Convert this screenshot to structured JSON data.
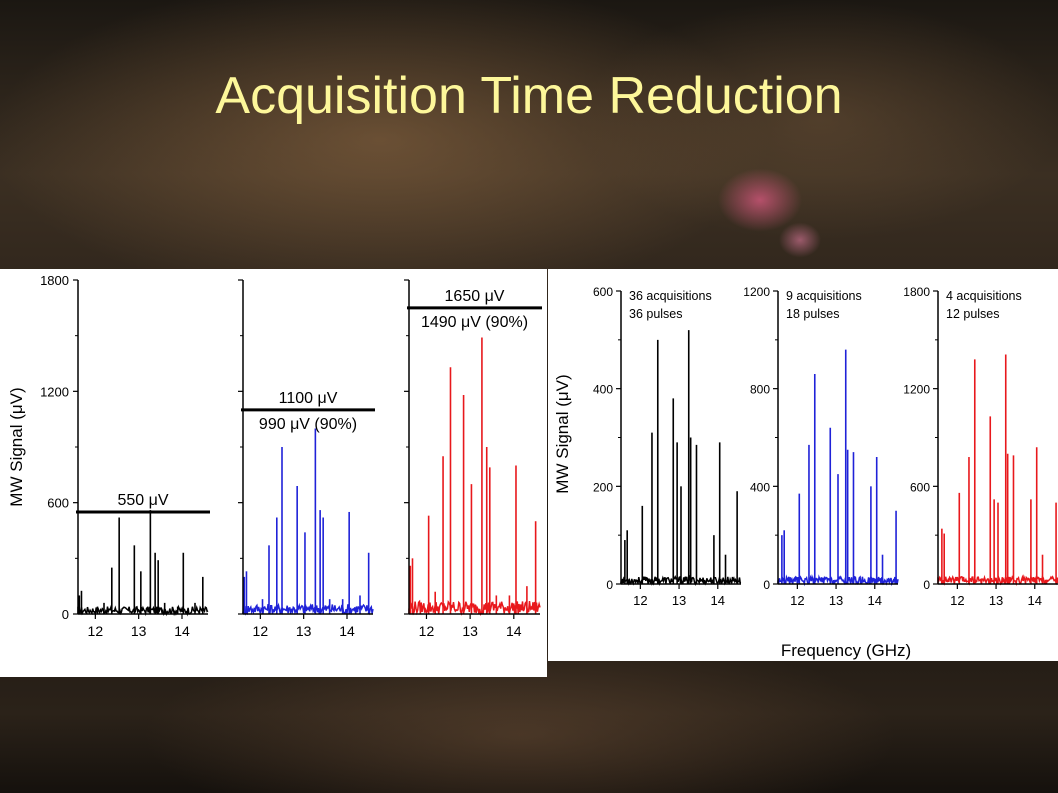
{
  "title": "Acquisition Time Reduction",
  "colors": {
    "black": "#000000",
    "blue": "#1f22d8",
    "red": "#e8181c",
    "title": "#fdf79a"
  },
  "chart_data": [
    {
      "type": "line",
      "panel": "left",
      "ylabel": "MW Signal (μV)",
      "ylim": [
        0,
        1800
      ],
      "yticks": [
        "0",
        "600",
        "1200",
        "1800"
      ],
      "xlim": [
        11.6,
        14.6
      ],
      "xticks": [
        "12",
        "13",
        "14"
      ],
      "subplots": [
        {
          "color": "black",
          "threshold": 550,
          "labels": [
            "550 μV"
          ],
          "peaks": [
            [
              11.63,
              100
            ],
            [
              11.68,
              125
            ],
            [
              12.05,
              40
            ],
            [
              12.2,
              60
            ],
            [
              12.38,
              250
            ],
            [
              12.55,
              520
            ],
            [
              12.9,
              370
            ],
            [
              13.05,
              230
            ],
            [
              13.27,
              560
            ],
            [
              13.38,
              330
            ],
            [
              13.45,
              290
            ],
            [
              13.6,
              60
            ],
            [
              13.9,
              40
            ],
            [
              14.03,
              330
            ],
            [
              14.3,
              60
            ],
            [
              14.48,
              200
            ]
          ]
        },
        {
          "color": "blue",
          "threshold": 1100,
          "labels": [
            "1100 μV",
            "990 μV (90%)"
          ],
          "peaks": [
            [
              11.63,
              200
            ],
            [
              11.68,
              230
            ],
            [
              12.05,
              80
            ],
            [
              12.2,
              370
            ],
            [
              12.38,
              520
            ],
            [
              12.5,
              900
            ],
            [
              12.85,
              690
            ],
            [
              13.03,
              440
            ],
            [
              13.27,
              1000
            ],
            [
              13.38,
              560
            ],
            [
              13.45,
              520
            ],
            [
              13.6,
              80
            ],
            [
              13.9,
              80
            ],
            [
              14.05,
              550
            ],
            [
              14.3,
              100
            ],
            [
              14.5,
              330
            ]
          ]
        },
        {
          "color": "red",
          "threshold": 1650,
          "labels": [
            "1650 μV",
            "1490 μV (90%)"
          ],
          "peaks": [
            [
              11.63,
              260
            ],
            [
              11.68,
              300
            ],
            [
              12.05,
              530
            ],
            [
              12.2,
              120
            ],
            [
              12.38,
              850
            ],
            [
              12.55,
              1330
            ],
            [
              12.85,
              1180
            ],
            [
              13.03,
              700
            ],
            [
              13.27,
              1490
            ],
            [
              13.38,
              900
            ],
            [
              13.45,
              790
            ],
            [
              13.6,
              100
            ],
            [
              13.9,
              100
            ],
            [
              14.05,
              800
            ],
            [
              14.3,
              150
            ],
            [
              14.5,
              500
            ]
          ]
        }
      ]
    },
    {
      "type": "line",
      "panel": "right",
      "ylabel": "MW Signal (μV)",
      "xlabel": "Frequency (GHz)",
      "xlim": [
        11.5,
        14.6
      ],
      "xticks": [
        "12",
        "13",
        "14"
      ],
      "subplots": [
        {
          "color": "black",
          "ylim": [
            0,
            600
          ],
          "yticks": [
            "0",
            "200",
            "400",
            "600"
          ],
          "labels": [
            "36 acquisitions",
            "36 pulses"
          ],
          "peaks": [
            [
              11.6,
              90
            ],
            [
              11.66,
              110
            ],
            [
              12.05,
              160
            ],
            [
              12.3,
              310
            ],
            [
              12.45,
              500
            ],
            [
              12.85,
              380
            ],
            [
              12.95,
              290
            ],
            [
              13.05,
              200
            ],
            [
              13.25,
              520
            ],
            [
              13.3,
              300
            ],
            [
              13.45,
              285
            ],
            [
              13.9,
              100
            ],
            [
              14.05,
              290
            ],
            [
              14.2,
              60
            ],
            [
              14.5,
              190
            ]
          ]
        },
        {
          "color": "blue",
          "ylim": [
            0,
            1200
          ],
          "yticks": [
            "0",
            "400",
            "800",
            "1200"
          ],
          "labels": [
            "9 acquisitions",
            "18 pulses"
          ],
          "peaks": [
            [
              11.6,
              200
            ],
            [
              11.66,
              220
            ],
            [
              12.05,
              370
            ],
            [
              12.3,
              570
            ],
            [
              12.45,
              860
            ],
            [
              12.85,
              640
            ],
            [
              13.05,
              450
            ],
            [
              13.25,
              960
            ],
            [
              13.3,
              550
            ],
            [
              13.45,
              540
            ],
            [
              13.9,
              400
            ],
            [
              14.05,
              520
            ],
            [
              14.2,
              120
            ],
            [
              14.55,
              300
            ]
          ]
        },
        {
          "color": "red",
          "ylim": [
            0,
            1800
          ],
          "yticks": [
            "0",
            "600",
            "1200",
            "1800"
          ],
          "labels": [
            "4 acquisitions",
            "12 pulses"
          ],
          "peaks": [
            [
              11.6,
              340
            ],
            [
              11.66,
              310
            ],
            [
              12.05,
              560
            ],
            [
              12.3,
              780
            ],
            [
              12.45,
              1380
            ],
            [
              12.85,
              1030
            ],
            [
              12.95,
              520
            ],
            [
              13.05,
              500
            ],
            [
              13.25,
              1410
            ],
            [
              13.3,
              800
            ],
            [
              13.45,
              790
            ],
            [
              13.9,
              520
            ],
            [
              14.05,
              840
            ],
            [
              14.2,
              180
            ],
            [
              14.55,
              500
            ]
          ]
        }
      ]
    }
  ]
}
